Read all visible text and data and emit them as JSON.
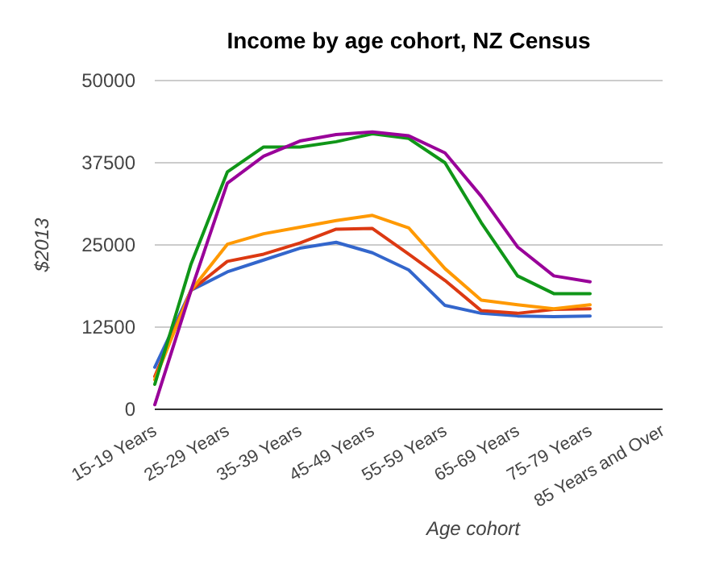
{
  "chart_data": {
    "type": "line",
    "title": "Income by age cohort, NZ Census",
    "xlabel": "Age cohort",
    "ylabel": "$2013",
    "categories": [
      "15-19 Years",
      null,
      "25-29 Years",
      null,
      "35-39 Years",
      null,
      "45-49 Years",
      null,
      "55-59 Years",
      null,
      "65-69 Years",
      null,
      "75-79 Years",
      null,
      "85 Years and Over"
    ],
    "ylim": [
      0,
      50000
    ],
    "yticks": [
      0,
      12500,
      25000,
      37500,
      50000
    ],
    "grid": "y",
    "line_style": "solid",
    "marker": "none",
    "series": [
      {
        "color": "#3366cc",
        "values": [
          6400,
          18100,
          20900,
          22700,
          24500,
          25400,
          23800,
          21200,
          15800,
          14600,
          14200,
          14100,
          14200,
          null,
          null
        ]
      },
      {
        "color": "#dc3912",
        "values": [
          5000,
          18100,
          22500,
          23600,
          25300,
          27400,
          27500,
          23600,
          19600,
          15000,
          14600,
          15200,
          15300,
          null,
          null
        ]
      },
      {
        "color": "#ff9900",
        "values": [
          4500,
          18100,
          25100,
          26700,
          27700,
          28700,
          29500,
          27600,
          21400,
          16600,
          15900,
          15300,
          15900,
          null,
          null
        ]
      },
      {
        "color": "#109618",
        "values": [
          3800,
          22100,
          36100,
          39900,
          39900,
          40700,
          41900,
          41200,
          37500,
          28400,
          20300,
          17600,
          17600,
          null,
          null
        ]
      },
      {
        "color": "#990099",
        "values": [
          700,
          18100,
          34400,
          38500,
          40800,
          41800,
          42200,
          41600,
          39000,
          32400,
          24700,
          20300,
          19400,
          null,
          null
        ]
      }
    ]
  }
}
